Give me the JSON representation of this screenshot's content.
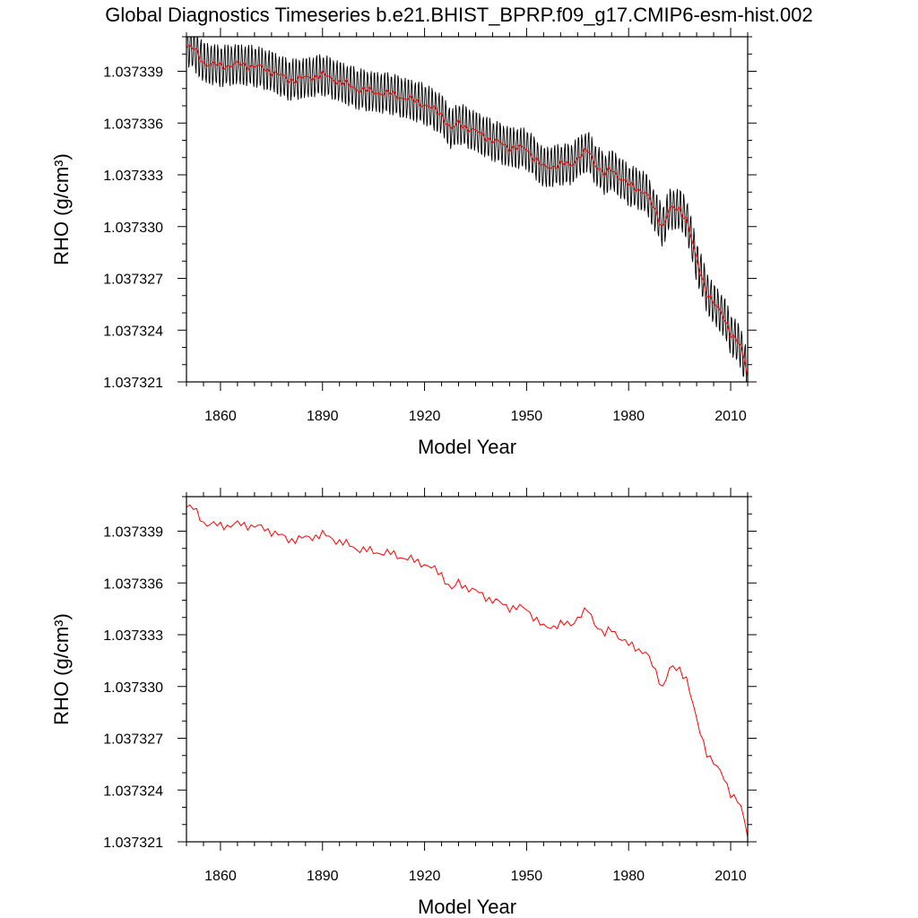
{
  "figure": {
    "title": "Global Diagnostics Timeseries b.e21.BHIST_BPRP.f09_g17.CMIP6-esm-hist.002"
  },
  "colors": {
    "monthly": "#000000",
    "annual": "#ff0000",
    "frame": "#000000"
  },
  "chart_data": [
    {
      "type": "line",
      "xlabel": "Model Year",
      "ylabel": "RHO (g/cm³)",
      "xlim": [
        1850,
        2015
      ],
      "ylim": [
        1.037321,
        1.037341
      ],
      "xticks": [
        1860,
        1890,
        1920,
        1950,
        1980,
        2010
      ],
      "yticks": [
        "1.037321",
        "1.037324",
        "1.037327",
        "1.037330",
        "1.037333",
        "1.037336",
        "1.037339"
      ],
      "grid": false,
      "monthly_amplitude": 1.2e-06,
      "series": [
        {
          "kind": "monthly",
          "color": "#000000",
          "x": [
            1850,
            1852,
            1855,
            1860,
            1865,
            1870,
            1875,
            1880,
            1885,
            1890,
            1895,
            1900,
            1905,
            1910,
            1915,
            1920,
            1925,
            1928,
            1930,
            1935,
            1940,
            1945,
            1950,
            1955,
            1960,
            1963,
            1965,
            1968,
            1970,
            1973,
            1975,
            1980,
            1985,
            1990,
            1992,
            1995,
            1997,
            2000,
            2003,
            2005,
            2008,
            2010,
            2013,
            2015
          ],
          "y": [
            1.0373405,
            1.0373403,
            1.0373395,
            1.0373393,
            1.0373394,
            1.0373393,
            1.037339,
            1.0373385,
            1.0373386,
            1.0373388,
            1.0373384,
            1.037338,
            1.0373378,
            1.0373377,
            1.0373374,
            1.0373371,
            1.0373365,
            1.0373356,
            1.037336,
            1.0373355,
            1.037335,
            1.0373346,
            1.0373345,
            1.0373334,
            1.0373336,
            1.0373336,
            1.037334,
            1.0373344,
            1.0373337,
            1.037333,
            1.0373333,
            1.0373324,
            1.037332,
            1.03733,
            1.037331,
            1.037331,
            1.0373305,
            1.037328,
            1.0373262,
            1.0373255,
            1.0373248,
            1.0373238,
            1.037323,
            1.0373215
          ]
        },
        {
          "kind": "annual",
          "color": "#ff0000",
          "x": [
            1850,
            1852,
            1855,
            1860,
            1865,
            1870,
            1875,
            1880,
            1885,
            1890,
            1895,
            1900,
            1905,
            1910,
            1915,
            1920,
            1925,
            1928,
            1930,
            1935,
            1940,
            1945,
            1950,
            1955,
            1960,
            1963,
            1965,
            1968,
            1970,
            1973,
            1975,
            1980,
            1985,
            1990,
            1992,
            1995,
            1997,
            2000,
            2003,
            2005,
            2008,
            2010,
            2013,
            2015
          ],
          "y": [
            1.0373405,
            1.0373403,
            1.0373395,
            1.0373393,
            1.0373394,
            1.0373393,
            1.037339,
            1.0373385,
            1.0373386,
            1.0373388,
            1.0373384,
            1.037338,
            1.0373378,
            1.0373377,
            1.0373374,
            1.0373371,
            1.0373365,
            1.0373356,
            1.037336,
            1.0373355,
            1.037335,
            1.0373346,
            1.0373345,
            1.0373334,
            1.0373336,
            1.0373336,
            1.037334,
            1.0373344,
            1.0373337,
            1.037333,
            1.0373333,
            1.0373324,
            1.037332,
            1.03733,
            1.037331,
            1.037331,
            1.0373305,
            1.037328,
            1.0373262,
            1.0373255,
            1.0373248,
            1.0373238,
            1.037323,
            1.0373215
          ]
        }
      ]
    },
    {
      "type": "line",
      "xlabel": "Model Year",
      "ylabel": "RHO (g/cm³)",
      "xlim": [
        1850,
        2015
      ],
      "ylim": [
        1.037321,
        1.037341
      ],
      "xticks": [
        1860,
        1890,
        1920,
        1950,
        1980,
        2010
      ],
      "yticks": [
        "1.037321",
        "1.037324",
        "1.037327",
        "1.037330",
        "1.037333",
        "1.037336",
        "1.037339"
      ],
      "grid": false,
      "series": [
        {
          "kind": "annual",
          "color": "#ff0000",
          "x": [
            1850,
            1852,
            1855,
            1860,
            1865,
            1870,
            1875,
            1880,
            1885,
            1890,
            1895,
            1900,
            1905,
            1910,
            1915,
            1920,
            1925,
            1928,
            1930,
            1935,
            1940,
            1945,
            1950,
            1955,
            1960,
            1963,
            1965,
            1968,
            1970,
            1973,
            1975,
            1980,
            1985,
            1990,
            1992,
            1995,
            1997,
            2000,
            2003,
            2005,
            2008,
            2010,
            2013,
            2015
          ],
          "y": [
            1.0373405,
            1.0373403,
            1.0373395,
            1.0373393,
            1.0373394,
            1.0373393,
            1.037339,
            1.0373385,
            1.0373386,
            1.0373388,
            1.0373384,
            1.037338,
            1.0373378,
            1.0373377,
            1.0373374,
            1.0373371,
            1.0373365,
            1.0373356,
            1.037336,
            1.0373355,
            1.037335,
            1.0373346,
            1.0373345,
            1.0373334,
            1.0373336,
            1.0373336,
            1.037334,
            1.0373344,
            1.0373337,
            1.037333,
            1.0373333,
            1.0373324,
            1.037332,
            1.03733,
            1.037331,
            1.037331,
            1.0373305,
            1.037328,
            1.0373262,
            1.0373255,
            1.0373248,
            1.0373238,
            1.037323,
            1.0373215
          ]
        }
      ]
    }
  ]
}
